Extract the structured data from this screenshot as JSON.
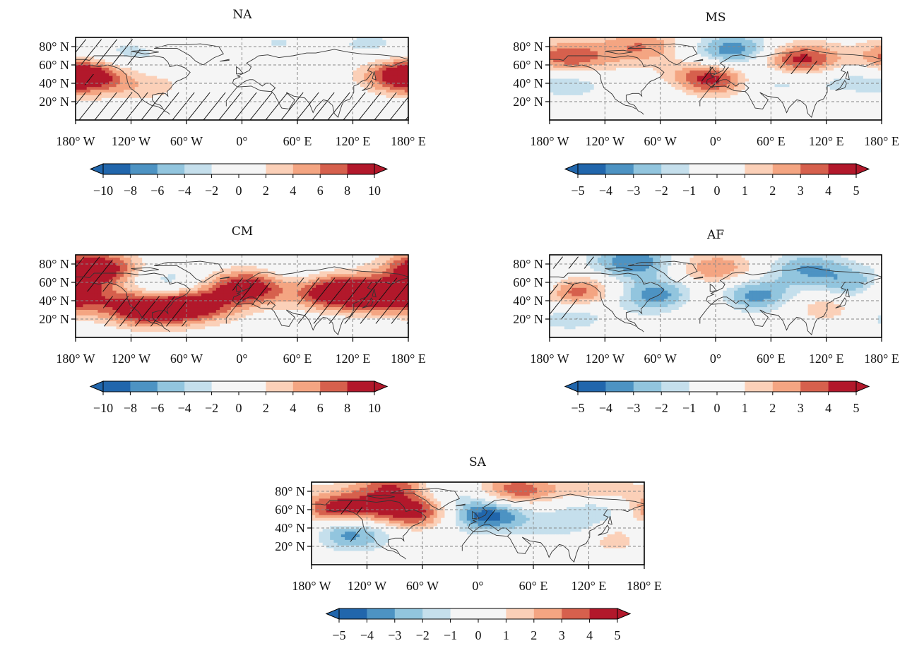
{
  "figure": {
    "lon_tick_labels": [
      "180° W",
      "120° W",
      "60° W",
      "0°",
      "60° E",
      "120° E",
      "180° E"
    ],
    "lat_tick_labels": [
      "20° N",
      "40° N",
      "60° N",
      "80° N"
    ],
    "palette": [
      "#2166ac",
      "#4d93c3",
      "#92c5de",
      "#c5dfec",
      "#f5f5f5",
      "#f5f5f5",
      "#fbd0b8",
      "#f4a582",
      "#d6604d",
      "#b2182b"
    ]
  },
  "panels": [
    {
      "title": "NA",
      "colorbar_ticks": [
        "−10",
        "−8",
        "−6",
        "−4",
        "−2",
        "0",
        "2",
        "4",
        "6",
        "8",
        "10"
      ],
      "anomaly_centers": [
        {
          "lon": -170,
          "lat": 48,
          "value": 8
        },
        {
          "lon": 175,
          "lat": 48,
          "value": 6
        },
        {
          "lon": -100,
          "lat": 35,
          "value": 3
        },
        {
          "lon": -125,
          "lat": 70,
          "value": -3
        },
        {
          "lon": 100,
          "lat": 10,
          "value": -2
        },
        {
          "lon": -60,
          "lat": 10,
          "value": -1.5
        },
        {
          "lon": 40,
          "lat": 85,
          "value": -2
        },
        {
          "lon": 0,
          "lat": 55,
          "value": -1.5
        },
        {
          "lon": 140,
          "lat": 82,
          "value": -2.5
        }
      ],
      "hatch": [
        {
          "lon_min": -180,
          "lon_max": 180,
          "lat_min": 0,
          "lat_max": 30
        },
        {
          "lon_min": -180,
          "lon_max": -110,
          "lat_min": 60,
          "lat_max": 88
        },
        {
          "lon_min": -175,
          "lon_max": -155,
          "lat_min": 38,
          "lat_max": 50
        }
      ]
    },
    {
      "title": "MS",
      "colorbar_ticks": [
        "−5",
        "−4",
        "−3",
        "−2",
        "−1",
        "0",
        "1",
        "2",
        "3",
        "4",
        "5"
      ],
      "anomaly_centers": [
        {
          "lon": -160,
          "lat": 68,
          "value": 4
        },
        {
          "lon": -80,
          "lat": 80,
          "value": 3
        },
        {
          "lon": -5,
          "lat": 45,
          "value": 5
        },
        {
          "lon": 90,
          "lat": 65,
          "value": 5
        },
        {
          "lon": -120,
          "lat": 40,
          "value": 2
        },
        {
          "lon": 20,
          "lat": 75,
          "value": -4
        },
        {
          "lon": -140,
          "lat": 40,
          "value": -3
        },
        {
          "lon": 60,
          "lat": 45,
          "value": -2
        },
        {
          "lon": 140,
          "lat": 45,
          "value": -1.5
        },
        {
          "lon": -60,
          "lat": 30,
          "value": -1
        }
      ],
      "hatch": [
        {
          "lon_min": -15,
          "lon_max": 15,
          "lat_min": 35,
          "lat_max": 58
        },
        {
          "lon_min": 70,
          "lon_max": 110,
          "lat_min": 50,
          "lat_max": 72
        }
      ]
    },
    {
      "title": "CM",
      "colorbar_ticks": [
        "−10",
        "−8",
        "−6",
        "−4",
        "−2",
        "0",
        "2",
        "4",
        "6",
        "8",
        "10"
      ],
      "anomaly_centers": [
        {
          "lon": -160,
          "lat": 75,
          "value": 12
        },
        {
          "lon": -100,
          "lat": 30,
          "value": 10
        },
        {
          "lon": -50,
          "lat": 35,
          "value": 9
        },
        {
          "lon": 10,
          "lat": 55,
          "value": 12
        },
        {
          "lon": 100,
          "lat": 50,
          "value": 12
        },
        {
          "lon": 160,
          "lat": 45,
          "value": 11
        },
        {
          "lon": -80,
          "lat": 58,
          "value": -4
        },
        {
          "lon": 50,
          "lat": 60,
          "value": -4
        },
        {
          "lon": -140,
          "lat": 40,
          "value": 3
        }
      ],
      "hatch": [
        {
          "lon_min": -180,
          "lon_max": -140,
          "lat_min": 50,
          "lat_max": 88
        },
        {
          "lon_min": -150,
          "lon_max": -60,
          "lat_min": 12,
          "lat_max": 45
        },
        {
          "lon_min": -10,
          "lon_max": 30,
          "lat_min": 35,
          "lat_max": 65
        },
        {
          "lon_min": 60,
          "lon_max": 180,
          "lat_min": 15,
          "lat_max": 65
        }
      ]
    },
    {
      "title": "AF",
      "colorbar_ticks": [
        "−5",
        "−4",
        "−3",
        "−2",
        "−1",
        "0",
        "1",
        "2",
        "3",
        "4",
        "5"
      ],
      "anomaly_centers": [
        {
          "lon": -160,
          "lat": 50,
          "value": 5
        },
        {
          "lon": 0,
          "lat": 75,
          "value": 3
        },
        {
          "lon": -10,
          "lat": 40,
          "value": 2
        },
        {
          "lon": 120,
          "lat": 35,
          "value": 2
        },
        {
          "lon": -90,
          "lat": 82,
          "value": -4
        },
        {
          "lon": -60,
          "lat": 45,
          "value": -4
        },
        {
          "lon": 40,
          "lat": 45,
          "value": -4
        },
        {
          "lon": 100,
          "lat": 75,
          "value": -3
        },
        {
          "lon": 160,
          "lat": 55,
          "value": -4
        },
        {
          "lon": -160,
          "lat": 25,
          "value": -2
        }
      ],
      "hatch": [
        {
          "lon_min": -180,
          "lon_max": -150,
          "lat_min": 20,
          "lat_max": 58
        },
        {
          "lon_min": -180,
          "lon_max": -130,
          "lat_min": 75,
          "lat_max": 88
        }
      ]
    },
    {
      "title": "SA",
      "colorbar_ticks": [
        "−5",
        "−4",
        "−3",
        "−2",
        "−1",
        "0",
        "1",
        "2",
        "3",
        "4",
        "5"
      ],
      "anomaly_centers": [
        {
          "lon": -150,
          "lat": 60,
          "value": 5
        },
        {
          "lon": -70,
          "lat": 58,
          "value": 5
        },
        {
          "lon": -90,
          "lat": 85,
          "value": 4
        },
        {
          "lon": 40,
          "lat": 80,
          "value": 4
        },
        {
          "lon": 130,
          "lat": 82,
          "value": 2
        },
        {
          "lon": 10,
          "lat": 55,
          "value": -5
        },
        {
          "lon": -140,
          "lat": 35,
          "value": -4
        },
        {
          "lon": -40,
          "lat": 80,
          "value": -2
        },
        {
          "lon": 100,
          "lat": 40,
          "value": -1.5
        },
        {
          "lon": 130,
          "lat": 60,
          "value": -2
        },
        {
          "lon": 150,
          "lat": 30,
          "value": 2
        }
      ],
      "hatch": [
        {
          "lon_min": -150,
          "lon_max": -125,
          "lat_min": 55,
          "lat_max": 70
        },
        {
          "lon_min": -140,
          "lon_max": -125,
          "lat_min": 25,
          "lat_max": 40
        },
        {
          "lon_min": 5,
          "lon_max": 20,
          "lat_min": 45,
          "lat_max": 60
        }
      ]
    }
  ]
}
